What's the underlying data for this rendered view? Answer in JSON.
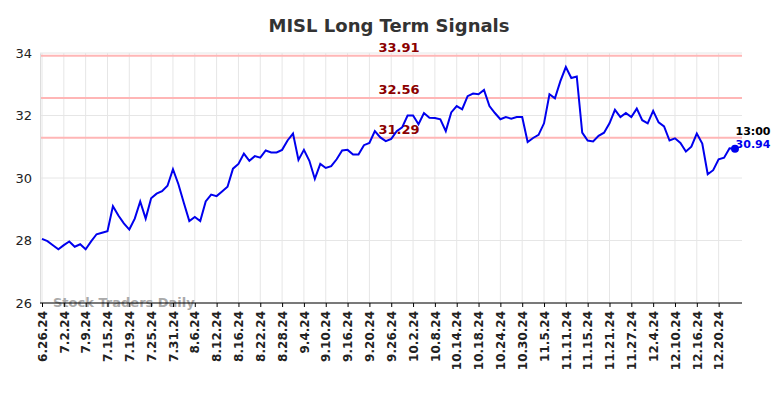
{
  "chart_data": {
    "type": "line",
    "title": "MISL Long Term Signals",
    "watermark": "Stock Traders Daily",
    "annotations": [
      "13:00"
    ],
    "categories": [
      "6.26.24",
      null,
      null,
      null,
      "7.2.24",
      null,
      null,
      null,
      "7.9.24",
      null,
      null,
      null,
      "7.15.24",
      null,
      null,
      null,
      "7.19.24",
      null,
      null,
      null,
      "7.25.24",
      null,
      null,
      null,
      "7.31.24",
      null,
      null,
      null,
      "8.6.24",
      null,
      null,
      null,
      "8.12.24",
      null,
      null,
      null,
      "8.16.24",
      null,
      null,
      null,
      "8.22.24",
      null,
      null,
      null,
      "8.28.24",
      null,
      null,
      null,
      "9.4.24",
      null,
      null,
      null,
      "9.10.24",
      null,
      null,
      null,
      "9.16.24",
      null,
      null,
      null,
      "9.20.24",
      null,
      null,
      null,
      "9.26.24",
      null,
      null,
      null,
      "10.2.24",
      null,
      null,
      null,
      "10.8.24",
      null,
      null,
      null,
      "10.14.24",
      null,
      null,
      null,
      "10.18.24",
      null,
      null,
      null,
      "10.24.24",
      null,
      null,
      null,
      "10.30.24",
      null,
      null,
      null,
      "11.5.24",
      null,
      null,
      null,
      "11.11.24",
      null,
      null,
      null,
      "11.15.24",
      null,
      null,
      null,
      "11.21.24",
      null,
      null,
      null,
      "11.27.24",
      null,
      null,
      null,
      "12.4.24",
      null,
      null,
      null,
      "12.10.24",
      null,
      null,
      null,
      "12.16.24",
      null,
      null,
      null,
      "12.20.24",
      null,
      null,
      null
    ],
    "series": [
      {
        "name": "MISL",
        "color": "#0000ee",
        "values": [
          28.05,
          27.98,
          27.85,
          27.72,
          27.85,
          27.97,
          27.8,
          27.88,
          27.72,
          27.97,
          28.2,
          28.25,
          28.3,
          29.1,
          28.8,
          28.55,
          28.35,
          28.7,
          29.25,
          28.7,
          29.35,
          29.5,
          29.58,
          29.75,
          30.28,
          29.8,
          29.2,
          28.62,
          28.75,
          28.62,
          29.25,
          29.47,
          29.42,
          29.57,
          29.72,
          30.3,
          30.45,
          30.78,
          30.55,
          30.7,
          30.65,
          30.88,
          30.82,
          30.82,
          30.9,
          31.2,
          31.42,
          30.58,
          30.9,
          30.55,
          29.97,
          30.45,
          30.32,
          30.38,
          30.6,
          30.88,
          30.9,
          30.75,
          30.75,
          31.05,
          31.12,
          31.5,
          31.3,
          31.18,
          31.25,
          31.5,
          31.62,
          32.0,
          32.0,
          31.72,
          32.08,
          31.93,
          31.92,
          31.88,
          31.5,
          32.1,
          32.3,
          32.2,
          32.62,
          32.7,
          32.68,
          32.82,
          32.3,
          32.08,
          31.88,
          31.95,
          31.9,
          31.95,
          31.95,
          31.15,
          31.28,
          31.38,
          31.75,
          32.68,
          32.55,
          33.1,
          33.55,
          33.2,
          33.25,
          31.45,
          31.2,
          31.17,
          31.35,
          31.45,
          31.75,
          32.18,
          31.95,
          32.08,
          31.95,
          32.22,
          31.85,
          31.75,
          32.15,
          31.78,
          31.65,
          31.2,
          31.27,
          31.12,
          30.85,
          31.0,
          31.42,
          31.1,
          30.12,
          30.25,
          30.6,
          30.65,
          30.95,
          30.94
        ]
      }
    ],
    "levels": [
      33.91,
      32.56,
      31.29
    ],
    "ylim": [
      26,
      34
    ],
    "yticks": [
      26,
      28,
      30,
      32,
      34
    ],
    "grid": true
  }
}
